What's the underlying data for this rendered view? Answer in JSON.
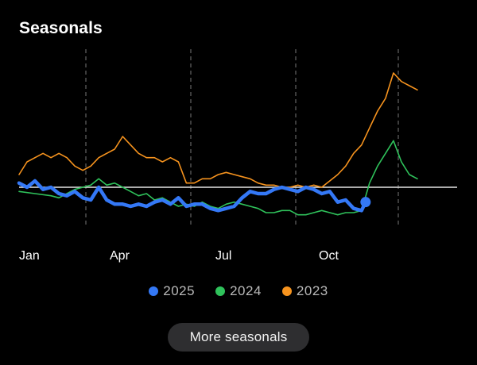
{
  "title": "Seasonals",
  "more_button": "More seasonals",
  "chart_data": {
    "type": "line",
    "title": "Seasonals",
    "x_ticks": [
      "Jan",
      "Apr",
      "Jul",
      "Oct"
    ],
    "x_range": [
      0,
      52
    ],
    "y_baseline": 0,
    "ylim": [
      -11,
      30
    ],
    "grid": "vertical dashed lines at quarter boundaries",
    "legend_position": "bottom-center",
    "series": [
      {
        "name": "2025",
        "color": "#3478f6",
        "x": [
          0,
          1,
          2,
          3,
          4,
          5,
          6,
          7,
          8,
          9,
          10,
          11,
          12,
          13,
          14,
          15,
          16,
          17,
          18,
          19,
          20,
          21,
          22,
          23,
          24,
          25,
          26,
          27,
          28,
          29,
          30,
          31,
          32,
          33,
          34,
          35,
          36,
          37,
          38,
          39,
          40,
          41,
          42,
          43,
          43.5
        ],
        "values": [
          1,
          0,
          1.5,
          -0.5,
          0,
          -1.5,
          -2,
          -1,
          -2.5,
          -3,
          0,
          -3,
          -4,
          -4,
          -4.5,
          -4,
          -4.5,
          -3.5,
          -3,
          -4,
          -2.5,
          -4.5,
          -4,
          -4,
          -5,
          -5.5,
          -5,
          -4.5,
          -2.5,
          -1,
          -1.5,
          -1.5,
          -0.5,
          0,
          -0.5,
          -1,
          0,
          -0.5,
          -1.5,
          -1,
          -3.5,
          -3,
          -5,
          -5.5,
          -3.5
        ]
      },
      {
        "name": "2024",
        "color": "#2fc25b",
        "x": [
          0,
          2,
          4,
          5,
          6,
          7,
          8,
          9,
          10,
          11,
          12,
          13,
          14,
          15,
          16,
          17,
          18,
          19,
          20,
          21,
          22,
          23,
          24,
          25,
          26,
          27,
          28,
          29,
          30,
          31,
          32,
          33,
          34,
          35,
          36,
          37,
          38,
          39,
          40,
          41,
          42,
          43,
          44,
          45,
          46,
          47,
          48,
          49,
          50
        ],
        "values": [
          -1,
          -1.5,
          -2,
          -2.5,
          -1.5,
          -0.5,
          0,
          0.5,
          2,
          0.5,
          1,
          0,
          -1,
          -2,
          -1.5,
          -3,
          -2.5,
          -3.5,
          -4.5,
          -4,
          -4.5,
          -3.5,
          -4.5,
          -5,
          -4,
          -3.5,
          -4,
          -4.5,
          -5,
          -6,
          -6,
          -5.5,
          -5.5,
          -6.5,
          -6.5,
          -6,
          -5.5,
          -6,
          -6.5,
          -6,
          -6,
          -5.5,
          1,
          5,
          8,
          11,
          6,
          3,
          2
        ]
      },
      {
        "name": "2023",
        "color": "#f6931e",
        "x": [
          0,
          1,
          2,
          3,
          4,
          5,
          6,
          7,
          8,
          9,
          10,
          11,
          12,
          13,
          14,
          15,
          16,
          17,
          18,
          19,
          20,
          21,
          22,
          23,
          24,
          25,
          26,
          27,
          28,
          29,
          30,
          31,
          32,
          33,
          34,
          35,
          36,
          37,
          38,
          39,
          40,
          41,
          42,
          43,
          44,
          45,
          46,
          47,
          48,
          49,
          50
        ],
        "values": [
          3,
          6,
          7,
          8,
          7,
          8,
          7,
          5,
          4,
          5,
          7,
          8,
          9,
          12,
          10,
          8,
          7,
          7,
          6,
          7,
          6,
          1,
          1,
          2,
          2,
          3,
          3.5,
          3,
          2.5,
          2,
          1,
          0.5,
          0.5,
          0,
          0,
          0.5,
          0,
          0.5,
          0,
          1.5,
          3,
          5,
          8,
          10,
          14,
          18,
          21,
          27,
          25,
          24,
          23
        ]
      }
    ]
  }
}
